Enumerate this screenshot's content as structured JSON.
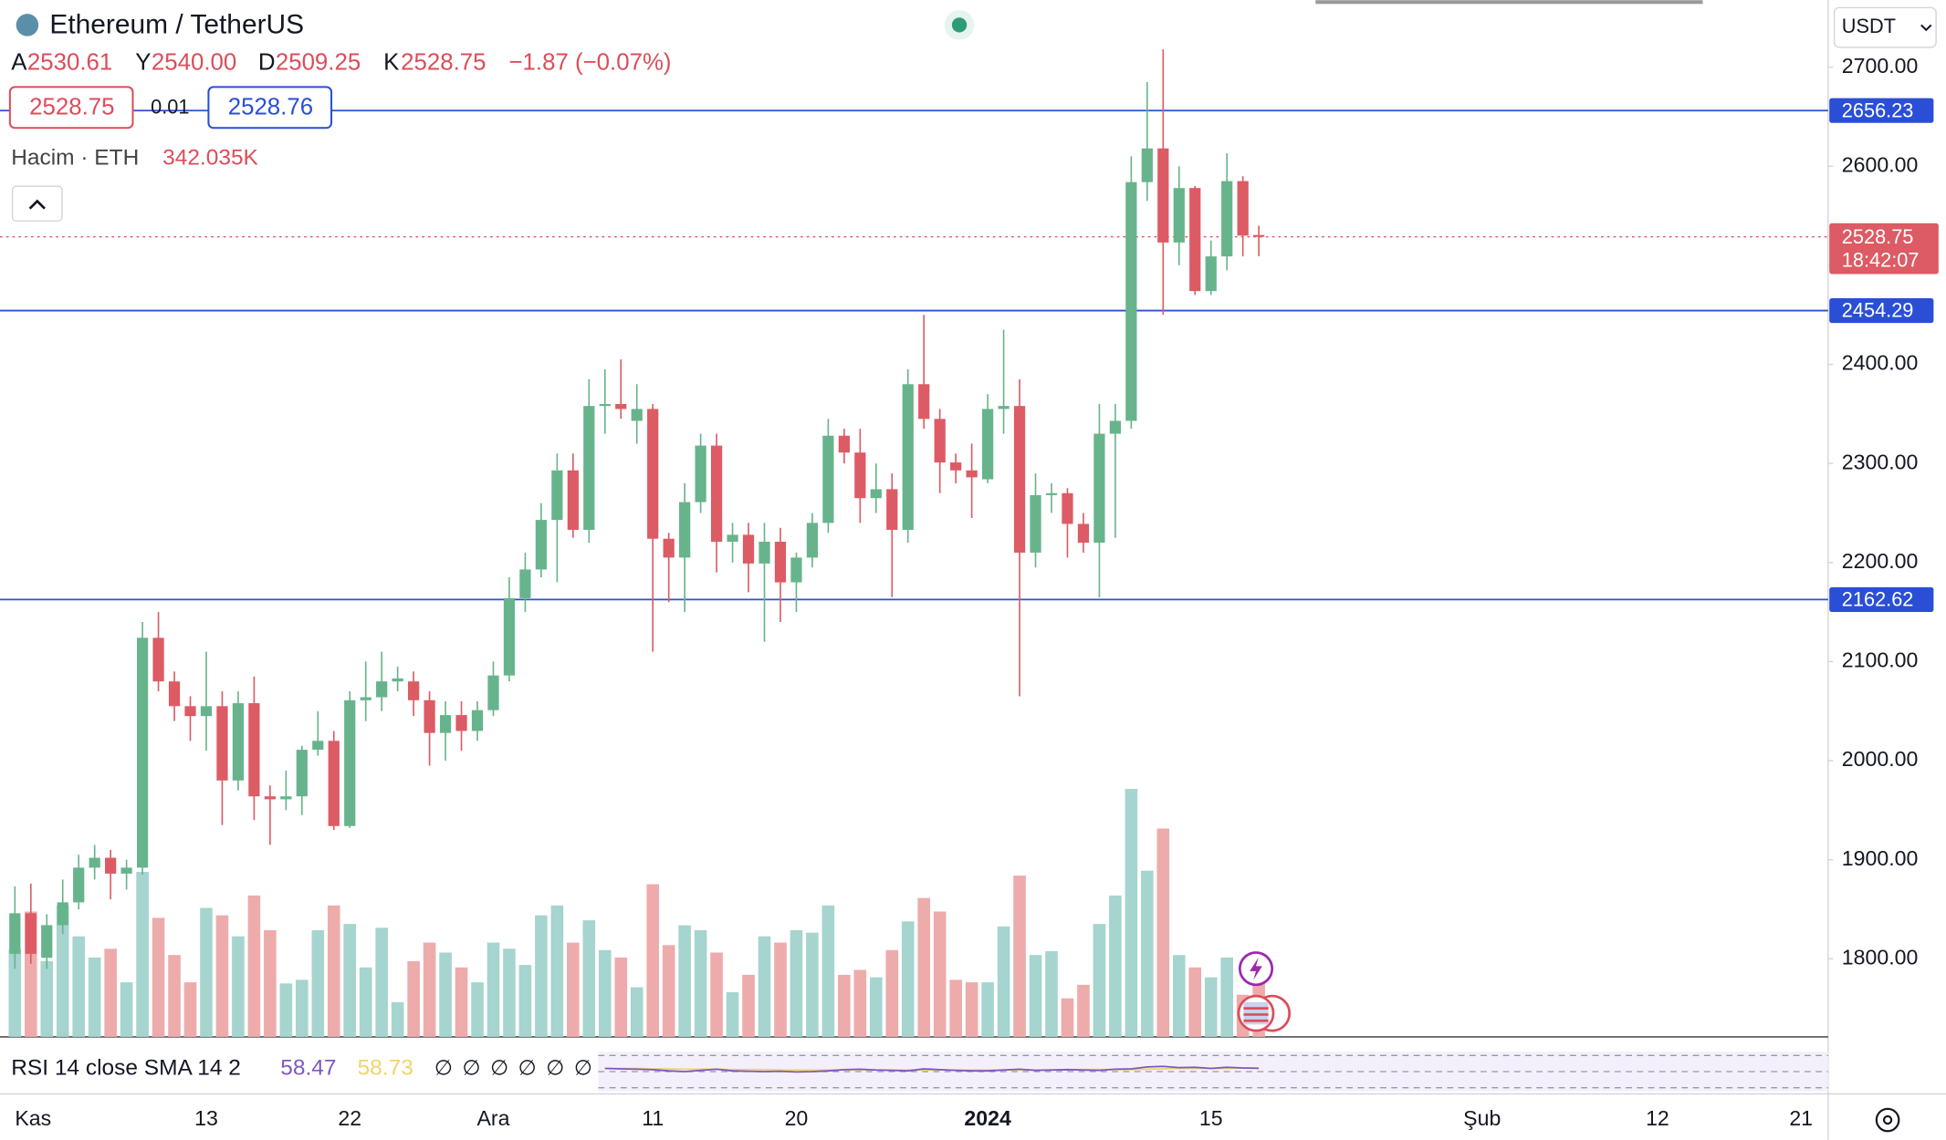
{
  "header": {
    "title": "Ethereum / TetherUS",
    "legend": [
      {
        "key": "A",
        "value": "2530.61"
      },
      {
        "key": "Y",
        "value": "2540.00"
      },
      {
        "key": "D",
        "value": "2509.25"
      },
      {
        "key": "K",
        "value": "2528.75"
      }
    ],
    "change": "−1.87 (−0.07%)",
    "bid": "2528.75",
    "spread": "0.01",
    "ask": "2528.76",
    "volume_title": "Hacim · ETH",
    "volume_value": "342.035K",
    "currency": "USDT"
  },
  "chart_data": {
    "type": "candlestick",
    "up_color": "#67b48c",
    "down_color": "#dc5b64",
    "volume_up_color": "#a6d4cf",
    "volume_down_color": "#eeabab",
    "open": [
      1805,
      1846,
      1801,
      1834,
      1857,
      1892,
      1902,
      1886,
      1892,
      2124,
      2080,
      2055,
      2045,
      2055,
      1980,
      2058,
      1964,
      1961,
      1964,
      2011,
      2020,
      1934,
      2061,
      2064,
      2080,
      2080,
      2061,
      2028,
      2046,
      2030,
      2051,
      2086,
      2164,
      2193,
      2243,
      2293,
      2233,
      2358,
      2360,
      2343,
      2355,
      2224,
      2205,
      2261,
      2318,
      2221,
      2228,
      2199,
      2221,
      2180,
      2205,
      2240,
      2328,
      2311,
      2265,
      2274,
      2233,
      2380,
      2345,
      2301,
      2293,
      2284,
      2355,
      2358,
      2210,
      2268,
      2270,
      2239,
      2220,
      2330,
      2343,
      2584,
      2618,
      2523,
      2578,
      2474,
      2509,
      2585,
      2530.61
    ],
    "high": [
      1873,
      1876,
      1845,
      1880,
      1905,
      1915,
      1910,
      1900,
      2140,
      2150,
      2090,
      2065,
      2110,
      2070,
      2070,
      2085,
      1975,
      1990,
      2015,
      2050,
      2030,
      2070,
      2100,
      2110,
      2095,
      2090,
      2070,
      2060,
      2060,
      2060,
      2100,
      2185,
      2210,
      2260,
      2310,
      2310,
      2385,
      2395,
      2405,
      2380,
      2360,
      2230,
      2280,
      2330,
      2330,
      2240,
      2240,
      2240,
      2235,
      2210,
      2250,
      2345,
      2335,
      2335,
      2300,
      2290,
      2395,
      2450,
      2355,
      2310,
      2320,
      2370,
      2435,
      2385,
      2290,
      2280,
      2275,
      2250,
      2360,
      2360,
      2610,
      2685,
      2718,
      2600,
      2580,
      2525,
      2613,
      2590,
      2540
    ],
    "low": [
      1790,
      1795,
      1790,
      1825,
      1850,
      1880,
      1860,
      1870,
      1885,
      2070,
      2040,
      2020,
      2010,
      1935,
      1970,
      1940,
      1915,
      1950,
      1945,
      2005,
      1930,
      1932,
      2040,
      2050,
      2070,
      2045,
      1995,
      2000,
      2010,
      2020,
      2045,
      2080,
      2150,
      2185,
      2180,
      2225,
      2220,
      2330,
      2345,
      2320,
      2110,
      2160,
      2150,
      2250,
      2190,
      2200,
      2170,
      2120,
      2140,
      2150,
      2195,
      2230,
      2300,
      2240,
      2250,
      2165,
      2220,
      2335,
      2270,
      2280,
      2245,
      2280,
      2330,
      2065,
      2195,
      2250,
      2205,
      2210,
      2165,
      2225,
      2335,
      2565,
      2450,
      2500,
      2470,
      2470,
      2495,
      2509,
      2509.25
    ],
    "close": [
      1846,
      1805,
      1834,
      1857,
      1892,
      1902,
      1886,
      1892,
      2124,
      2080,
      2055,
      2045,
      2055,
      1980,
      2058,
      1964,
      1961,
      1964,
      2011,
      2020,
      1934,
      2061,
      2064,
      2080,
      2083,
      2061,
      2028,
      2046,
      2030,
      2051,
      2086,
      2164,
      2193,
      2243,
      2293,
      2233,
      2358,
      2360,
      2355,
      2355,
      2224,
      2205,
      2261,
      2318,
      2221,
      2228,
      2199,
      2221,
      2180,
      2205,
      2240,
      2328,
      2311,
      2265,
      2274,
      2233,
      2380,
      2345,
      2301,
      2293,
      2286,
      2355,
      2358,
      2210,
      2268,
      2270,
      2239,
      2220,
      2330,
      2343,
      2584,
      2618,
      2523,
      2578,
      2474,
      2509,
      2585,
      2530,
      2528.75
    ],
    "volume": [
      462,
      657,
      397,
      689,
      527,
      416,
      462,
      286,
      865,
      624,
      429,
      286,
      676,
      637,
      527,
      741,
      559,
      280,
      299,
      559,
      689,
      592,
      364,
      572,
      182,
      397,
      494,
      442,
      364,
      286,
      494,
      462,
      377,
      637,
      689,
      494,
      611,
      455,
      416,
      260,
      800,
      481,
      585,
      559,
      442,
      234,
      325,
      527,
      494,
      559,
      546,
      689,
      325,
      351,
      312,
      455,
      605,
      728,
      657,
      299,
      286,
      286,
      579,
      845,
      429,
      449,
      202,
      273,
      592,
      741,
      1300,
      871,
      1092,
      429,
      364,
      312,
      416,
      221,
      342.035
    ],
    "volume_ylim": [
      0,
      1560
    ],
    "ylim": [
      1721.2,
      2767.6
    ],
    "yticks": [
      {
        "value": 1800,
        "label": "1800.00"
      },
      {
        "value": 1900,
        "label": "1900.00"
      },
      {
        "value": 2000,
        "label": "2000.00"
      },
      {
        "value": 2100,
        "label": "2100.00"
      },
      {
        "value": 2200,
        "label": "2200.00"
      },
      {
        "value": 2300,
        "label": "2300.00"
      },
      {
        "value": 2400,
        "label": "2400.00"
      },
      {
        "value": 2500,
        "label": "2500.00"
      },
      {
        "value": 2600,
        "label": "2600.00"
      },
      {
        "value": 2700,
        "label": "2700.00"
      }
    ],
    "xticks": [
      {
        "index": 0,
        "label": "Kas"
      },
      {
        "index": 12,
        "label": "13"
      },
      {
        "index": 21,
        "label": "22"
      },
      {
        "index": 30,
        "label": "Ara"
      },
      {
        "index": 40,
        "label": "11"
      },
      {
        "index": 49,
        "label": "20"
      },
      {
        "index": 61,
        "label": "2024"
      },
      {
        "index": 75,
        "label": "15"
      },
      {
        "index": 92,
        "label": "Şub"
      },
      {
        "index": 103,
        "label": "12"
      },
      {
        "index": 112,
        "label": "21"
      }
    ],
    "price_lines": [
      2656.23,
      2454.29,
      2162.62
    ],
    "price_line_color": "#2a4fd6",
    "last_price": 2528.75,
    "countdown": "18:42:07",
    "rsi": {
      "label": "RSI 14 close SMA 14 2",
      "value": "58.47",
      "sma": "58.73",
      "placeholders": [
        "∅",
        "∅",
        "∅",
        "∅",
        "∅",
        "∅"
      ],
      "ylim": [
        0,
        100
      ],
      "color": "#7e57c2",
      "sma_color": "#f0d56a",
      "values": [
        null,
        null,
        null,
        null,
        null,
        null,
        null,
        null,
        null,
        null,
        null,
        null,
        null,
        null,
        null,
        null,
        null,
        null,
        null,
        null,
        null,
        null,
        null,
        null,
        null,
        null,
        null,
        null,
        null,
        null,
        null,
        null,
        null,
        null,
        null,
        null,
        null,
        58,
        57,
        56,
        55,
        52,
        50,
        53,
        56,
        52,
        51,
        50,
        51,
        49,
        50,
        52,
        55,
        56,
        54,
        53,
        52,
        57,
        55,
        53,
        52,
        52,
        54,
        56,
        53,
        54,
        55,
        54,
        53,
        56,
        57,
        62,
        63,
        60,
        61,
        58,
        61,
        59,
        58.47
      ],
      "sma_values": [
        null,
        null,
        null,
        null,
        null,
        null,
        null,
        null,
        null,
        null,
        null,
        null,
        null,
        null,
        null,
        null,
        null,
        null,
        null,
        null,
        null,
        null,
        null,
        null,
        null,
        null,
        null,
        null,
        null,
        null,
        null,
        null,
        null,
        null,
        null,
        null,
        null,
        58,
        58,
        58,
        57,
        57,
        56,
        56,
        56,
        55,
        55,
        55,
        54,
        54,
        54,
        54,
        54,
        54,
        54,
        54,
        54,
        54,
        54,
        54,
        54,
        54,
        54,
        54,
        54,
        54,
        55,
        55,
        55,
        55,
        55,
        56,
        57,
        58,
        58,
        58,
        58,
        59,
        58.73
      ]
    }
  }
}
